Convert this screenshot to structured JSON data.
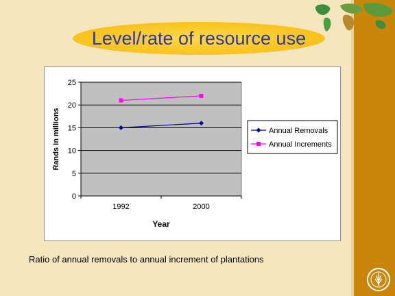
{
  "slide": {
    "title": "Level/rate of resource use",
    "caption": "Ratio of annual removals to annual increment of plantations",
    "icons": [
      "world-map-icon",
      "fao-logo-icon"
    ],
    "colors": {
      "background": "#f5e6c0",
      "band": "#c8860a",
      "title_oval": "#f7c21b",
      "title_text": "#2f34a6"
    }
  },
  "chart_data": {
    "type": "line",
    "categories": [
      "1992",
      "2000"
    ],
    "series": [
      {
        "name": "Annual Removals",
        "values": [
          15,
          16
        ],
        "color": "#00008b",
        "marker": "diamond"
      },
      {
        "name": "Annual Increments",
        "values": [
          21,
          22
        ],
        "color": "#ff00ff",
        "marker": "square"
      }
    ],
    "title": "",
    "xlabel": "Year",
    "ylabel": "Rands in millions",
    "ylim": [
      0,
      25
    ],
    "yticks": [
      0,
      5,
      10,
      15,
      20,
      25
    ],
    "grid": true,
    "legend": "right",
    "plot_background": "#c0c0c0"
  }
}
